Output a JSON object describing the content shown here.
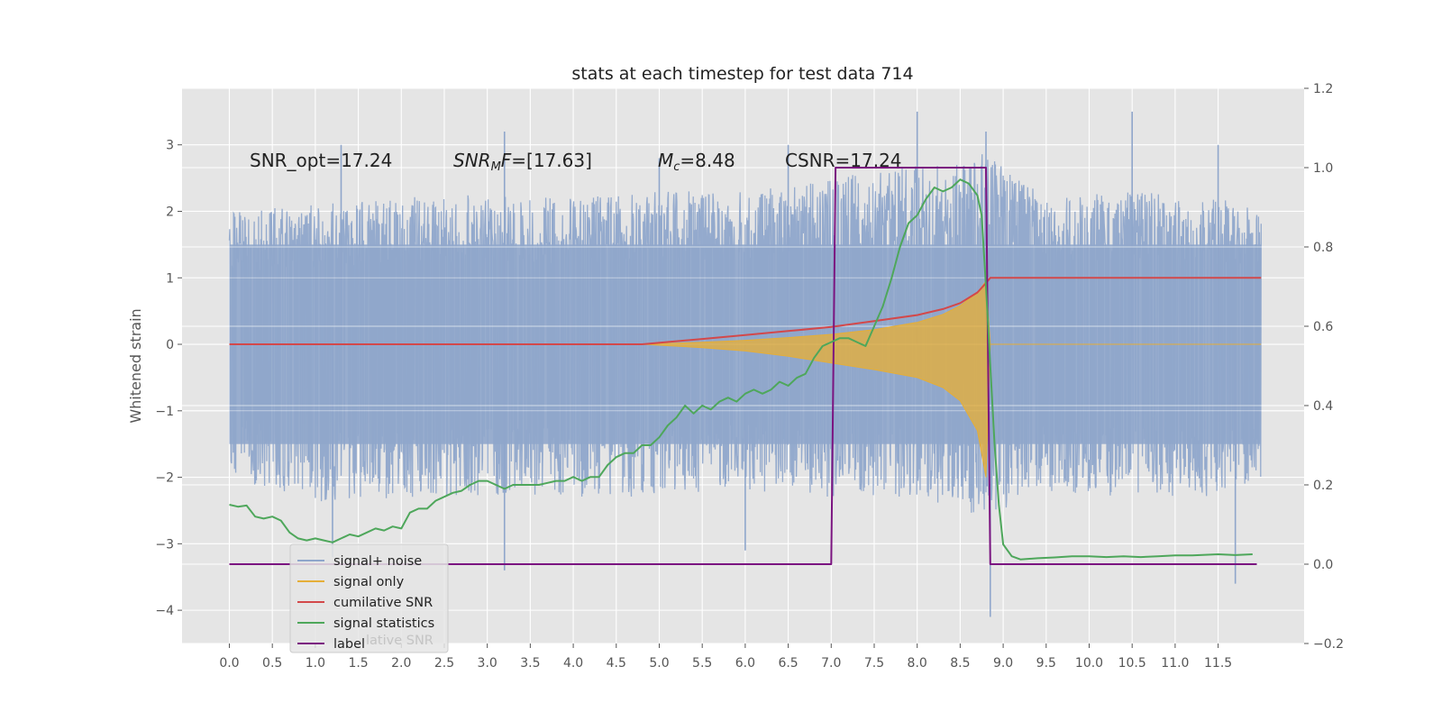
{
  "chart_data": {
    "type": "line",
    "title": "stats at each timestep for test data 714",
    "ylabel": "Whitened strain",
    "xlabel": "",
    "xlim": [
      -0.55,
      12.5
    ],
    "ylim": [
      -4.5,
      3.85
    ],
    "y2lim": [
      -0.2,
      1.2
    ],
    "x_ticks": [
      "0.0",
      "0.5",
      "1.0",
      "1.5",
      "2.0",
      "2.5",
      "3.0",
      "3.5",
      "4.0",
      "4.5",
      "5.0",
      "5.5",
      "6.0",
      "6.5",
      "7.0",
      "7.5",
      "8.0",
      "8.5",
      "9.0",
      "9.5",
      "10.0",
      "10.5",
      "11.0",
      "11.5"
    ],
    "y_ticks": [
      "3",
      "2",
      "1",
      "0",
      "−1",
      "−2",
      "−3",
      "−4"
    ],
    "y2_ticks": [
      "1.2",
      "1.0",
      "0.8",
      "0.6",
      "0.4",
      "0.2",
      "0.0",
      "−0.2"
    ],
    "grid": true,
    "legend_position": "lower-left",
    "annotations": [
      {
        "text": "SNR_opt=17.24",
        "x": 0.2,
        "y": 2.7
      },
      {
        "base": "SNR",
        "sub": "M",
        "rest": "F=[17.63]",
        "x": 2.6,
        "y": 2.7
      },
      {
        "base": "M",
        "sub": "c",
        "rest": "=8.48",
        "x": 5.0,
        "y": 2.7
      },
      {
        "text": "CSNR=17.24",
        "x": 6.5,
        "y": 2.7
      }
    ],
    "series": [
      {
        "name": "signal+ noise",
        "color": "#8fa6cb",
        "x_range": [
          0.0,
          12.0
        ],
        "typical_band": [
          -1.5,
          1.5
        ],
        "envelope_top": [
          [
            0.0,
            2.0
          ],
          [
            1.0,
            2.1
          ],
          [
            2.0,
            2.2
          ],
          [
            3.0,
            2.3
          ],
          [
            4.0,
            2.2
          ],
          [
            5.0,
            2.3
          ],
          [
            6.0,
            2.3
          ],
          [
            7.0,
            2.5
          ],
          [
            8.0,
            2.7
          ],
          [
            8.8,
            2.9
          ],
          [
            9.5,
            2.2
          ],
          [
            10.5,
            2.3
          ],
          [
            11.5,
            2.2
          ],
          [
            12.0,
            2.0
          ]
        ],
        "envelope_bottom": [
          [
            0.0,
            -2.0
          ],
          [
            1.0,
            -2.4
          ],
          [
            2.0,
            -2.3
          ],
          [
            3.0,
            -2.3
          ],
          [
            4.0,
            -2.3
          ],
          [
            5.0,
            -2.3
          ],
          [
            6.0,
            -2.2
          ],
          [
            7.0,
            -2.3
          ],
          [
            8.0,
            -2.3
          ],
          [
            8.8,
            -2.6
          ],
          [
            9.5,
            -2.2
          ],
          [
            10.5,
            -2.3
          ],
          [
            11.5,
            -2.3
          ],
          [
            12.0,
            -2.0
          ]
        ],
        "spikes": [
          [
            1.3,
            3.0
          ],
          [
            3.2,
            3.2
          ],
          [
            5.0,
            2.8
          ],
          [
            6.5,
            3.0
          ],
          [
            8.0,
            3.5
          ],
          [
            8.8,
            3.2
          ],
          [
            10.5,
            3.5
          ],
          [
            11.5,
            3.0
          ],
          [
            1.2,
            -3.2
          ],
          [
            3.2,
            -3.4
          ],
          [
            6.0,
            -3.1
          ],
          [
            8.85,
            -4.1
          ],
          [
            11.7,
            -3.6
          ]
        ]
      },
      {
        "name": "signal only",
        "color": "#e5ae38",
        "upper": [
          [
            0.0,
            0.0
          ],
          [
            4.8,
            0.0
          ],
          [
            5.5,
            0.03
          ],
          [
            6.0,
            0.06
          ],
          [
            6.5,
            0.1
          ],
          [
            7.0,
            0.15
          ],
          [
            7.5,
            0.22
          ],
          [
            8.0,
            0.33
          ],
          [
            8.3,
            0.45
          ],
          [
            8.5,
            0.58
          ],
          [
            8.7,
            0.78
          ],
          [
            8.8,
            0.95
          ],
          [
            8.85,
            0.0
          ],
          [
            12.0,
            0.0
          ]
        ],
        "lower": [
          [
            0.0,
            0.0
          ],
          [
            4.8,
            0.0
          ],
          [
            5.5,
            -0.05
          ],
          [
            6.0,
            -0.1
          ],
          [
            6.5,
            -0.18
          ],
          [
            7.0,
            -0.28
          ],
          [
            7.5,
            -0.38
          ],
          [
            8.0,
            -0.5
          ],
          [
            8.3,
            -0.65
          ],
          [
            8.5,
            -0.85
          ],
          [
            8.7,
            -1.3
          ],
          [
            8.8,
            -2.0
          ],
          [
            8.85,
            0.0
          ],
          [
            12.0,
            0.0
          ]
        ]
      },
      {
        "name": "cumilative SNR",
        "color": "#d3484a",
        "points": [
          [
            0.0,
            0.0
          ],
          [
            4.8,
            0.0
          ],
          [
            5.5,
            0.08
          ],
          [
            6.0,
            0.14
          ],
          [
            6.5,
            0.2
          ],
          [
            7.0,
            0.26
          ],
          [
            7.5,
            0.35
          ],
          [
            8.0,
            0.44
          ],
          [
            8.3,
            0.53
          ],
          [
            8.5,
            0.62
          ],
          [
            8.7,
            0.78
          ],
          [
            8.8,
            0.92
          ],
          [
            8.85,
            1.0
          ],
          [
            12.0,
            1.0
          ]
        ]
      },
      {
        "name": "signal statistics",
        "color": "#4ea75b",
        "axis": "right",
        "points": [
          [
            0.0,
            0.15
          ],
          [
            0.1,
            0.145
          ],
          [
            0.2,
            0.148
          ],
          [
            0.3,
            0.12
          ],
          [
            0.4,
            0.115
          ],
          [
            0.5,
            0.12
          ],
          [
            0.6,
            0.11
          ],
          [
            0.7,
            0.08
          ],
          [
            0.8,
            0.065
          ],
          [
            0.9,
            0.06
          ],
          [
            1.0,
            0.065
          ],
          [
            1.1,
            0.06
          ],
          [
            1.2,
            0.055
          ],
          [
            1.3,
            0.065
          ],
          [
            1.4,
            0.075
          ],
          [
            1.5,
            0.07
          ],
          [
            1.6,
            0.08
          ],
          [
            1.7,
            0.09
          ],
          [
            1.8,
            0.085
          ],
          [
            1.9,
            0.095
          ],
          [
            2.0,
            0.09
          ],
          [
            2.1,
            0.13
          ],
          [
            2.2,
            0.14
          ],
          [
            2.3,
            0.14
          ],
          [
            2.4,
            0.16
          ],
          [
            2.5,
            0.17
          ],
          [
            2.6,
            0.18
          ],
          [
            2.7,
            0.185
          ],
          [
            2.8,
            0.2
          ],
          [
            2.9,
            0.21
          ],
          [
            3.0,
            0.21
          ],
          [
            3.1,
            0.2
          ],
          [
            3.2,
            0.19
          ],
          [
            3.3,
            0.2
          ],
          [
            3.4,
            0.2
          ],
          [
            3.5,
            0.2
          ],
          [
            3.6,
            0.2
          ],
          [
            3.7,
            0.205
          ],
          [
            3.8,
            0.21
          ],
          [
            3.9,
            0.21
          ],
          [
            4.0,
            0.22
          ],
          [
            4.1,
            0.21
          ],
          [
            4.2,
            0.22
          ],
          [
            4.3,
            0.22
          ],
          [
            4.4,
            0.25
          ],
          [
            4.5,
            0.27
          ],
          [
            4.6,
            0.28
          ],
          [
            4.7,
            0.28
          ],
          [
            4.8,
            0.3
          ],
          [
            4.9,
            0.3
          ],
          [
            5.0,
            0.32
          ],
          [
            5.1,
            0.35
          ],
          [
            5.2,
            0.37
          ],
          [
            5.3,
            0.4
          ],
          [
            5.4,
            0.38
          ],
          [
            5.5,
            0.4
          ],
          [
            5.6,
            0.39
          ],
          [
            5.7,
            0.41
          ],
          [
            5.8,
            0.42
          ],
          [
            5.9,
            0.41
          ],
          [
            6.0,
            0.43
          ],
          [
            6.1,
            0.44
          ],
          [
            6.2,
            0.43
          ],
          [
            6.3,
            0.44
          ],
          [
            6.4,
            0.46
          ],
          [
            6.5,
            0.45
          ],
          [
            6.6,
            0.47
          ],
          [
            6.7,
            0.48
          ],
          [
            6.8,
            0.52
          ],
          [
            6.9,
            0.55
          ],
          [
            7.0,
            0.56
          ],
          [
            7.1,
            0.57
          ],
          [
            7.2,
            0.57
          ],
          [
            7.3,
            0.56
          ],
          [
            7.4,
            0.55
          ],
          [
            7.5,
            0.6
          ],
          [
            7.6,
            0.65
          ],
          [
            7.7,
            0.72
          ],
          [
            7.8,
            0.8
          ],
          [
            7.9,
            0.86
          ],
          [
            8.0,
            0.88
          ],
          [
            8.1,
            0.92
          ],
          [
            8.2,
            0.95
          ],
          [
            8.3,
            0.94
          ],
          [
            8.4,
            0.95
          ],
          [
            8.5,
            0.97
          ],
          [
            8.6,
            0.96
          ],
          [
            8.7,
            0.93
          ],
          [
            8.75,
            0.88
          ],
          [
            8.8,
            0.7
          ],
          [
            8.85,
            0.5
          ],
          [
            8.9,
            0.3
          ],
          [
            8.95,
            0.15
          ],
          [
            9.0,
            0.05
          ],
          [
            9.1,
            0.02
          ],
          [
            9.2,
            0.012
          ],
          [
            9.4,
            0.015
          ],
          [
            9.6,
            0.017
          ],
          [
            9.8,
            0.02
          ],
          [
            10.0,
            0.02
          ],
          [
            10.2,
            0.018
          ],
          [
            10.4,
            0.02
          ],
          [
            10.6,
            0.018
          ],
          [
            10.8,
            0.02
          ],
          [
            11.0,
            0.022
          ],
          [
            11.2,
            0.022
          ],
          [
            11.5,
            0.025
          ],
          [
            11.7,
            0.023
          ],
          [
            11.9,
            0.025
          ]
        ]
      },
      {
        "name": "label",
        "color": "#7b1480",
        "axis": "right",
        "points": [
          [
            0.0,
            0.0
          ],
          [
            7.0,
            0.0
          ],
          [
            7.05,
            1.0
          ],
          [
            8.8,
            1.0
          ],
          [
            8.85,
            0.0
          ],
          [
            11.95,
            0.0
          ]
        ]
      }
    ],
    "legend": [
      "signal+ noise",
      "signal only",
      "cumilative SNR",
      "signal statistics",
      "label"
    ],
    "legend_ghost_text": "lative SNR"
  }
}
